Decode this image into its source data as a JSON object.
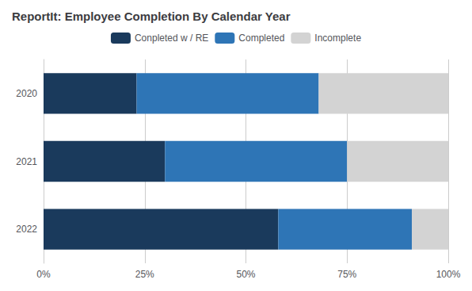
{
  "chart_data": {
    "type": "bar",
    "orientation": "horizontal",
    "stacked": true,
    "title": "ReportIt: Employee Completion By Calendar Year",
    "categories": [
      "2022",
      "2021",
      "2020"
    ],
    "series": [
      {
        "name": "Conpleted w / RE",
        "color": "#1a3a5c",
        "values": [
          58,
          30,
          23
        ]
      },
      {
        "name": "Completed",
        "color": "#2e75b6",
        "values": [
          33,
          45,
          45
        ]
      },
      {
        "name": "Incomplete",
        "color": "#d3d3d3",
        "values": [
          9,
          25,
          32
        ]
      }
    ],
    "xlim": [
      0,
      100
    ],
    "xticks": [
      {
        "value": 0,
        "label": "0%"
      },
      {
        "value": 25,
        "label": "25%"
      },
      {
        "value": 50,
        "label": "50%"
      },
      {
        "value": 75,
        "label": "75%"
      },
      {
        "value": 100,
        "label": "100%"
      }
    ],
    "grid": true,
    "legend": "top"
  }
}
